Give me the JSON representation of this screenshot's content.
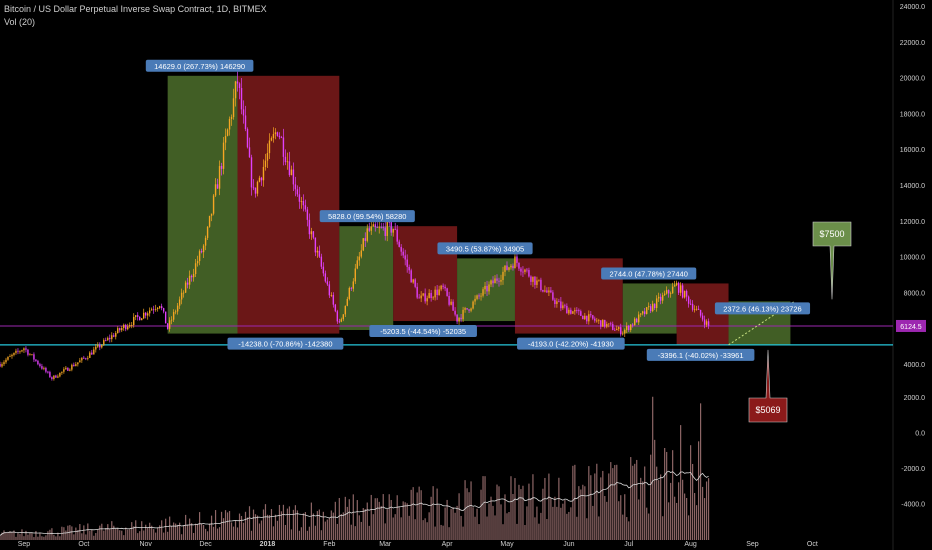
{
  "header": {
    "title": "Bitcoin / US Dollar Perpetual Inverse Swap Contract, 1D, BITMEX",
    "volume_label": "Vol (20)"
  },
  "colors": {
    "background": "#000000",
    "up_candle": "#f5a623",
    "down_candle": "#e040fb",
    "green_box": "#4a6b2a",
    "red_box": "#7a1a1a",
    "support_line": "#26c6da",
    "price_line": "#9c27b0",
    "label_blue": "#4a7bb7",
    "callout_green": "#6b8f4a",
    "callout_red": "#8b1a1a",
    "volume_bar": "#b08080"
  },
  "chart_data": {
    "type": "candlestick",
    "x_ticks": [
      "Sep",
      "Oct",
      "Nov",
      "Dec",
      "2018",
      "Feb",
      "Mar",
      "Apr",
      "May",
      "Jun",
      "Jul",
      "Aug",
      "Sep",
      "Oct"
    ],
    "y_ticks": [
      "24000.0",
      "22000.0",
      "20000.0",
      "18000.0",
      "16000.0",
      "14000.0",
      "12000.0",
      "10000.0",
      "8000.0",
      "6000.0",
      "4000.0",
      "2000.0",
      "0.0",
      "-2000.0",
      "-4000.0"
    ],
    "price_ylim": [
      2500,
      24000
    ],
    "current_price": "6124.5",
    "support_level": 5069,
    "price_path": [
      [
        "2017-08-20",
        4000
      ],
      [
        "2017-09-01",
        4900
      ],
      [
        "2017-09-15",
        3200
      ],
      [
        "2017-10-01",
        4300
      ],
      [
        "2017-10-20",
        6000
      ],
      [
        "2017-11-08",
        7400
      ],
      [
        "2017-11-12",
        6000
      ],
      [
        "2017-12-01",
        10800
      ],
      [
        "2017-12-17",
        19800
      ],
      [
        "2017-12-25",
        13500
      ],
      [
        "2018-01-06",
        17200
      ],
      [
        "2018-02-06",
        6200
      ],
      [
        "2018-02-20",
        11400
      ],
      [
        "2018-03-05",
        11600
      ],
      [
        "2018-03-18",
        7600
      ],
      [
        "2018-03-30",
        8200
      ],
      [
        "2018-04-06",
        6500
      ],
      [
        "2018-05-05",
        9800
      ],
      [
        "2018-05-28",
        7200
      ],
      [
        "2018-06-28",
        5800
      ],
      [
        "2018-07-25",
        8400
      ],
      [
        "2018-08-10",
        6124.5
      ]
    ],
    "measurement_boxes": [
      {
        "start": "2017-11-12",
        "end": "2017-12-17",
        "low": 5700,
        "high": 20100,
        "direction": "up",
        "label": "14629.0 (267.73%) 146290"
      },
      {
        "start": "2017-12-17",
        "end": "2018-02-06",
        "low": 5700,
        "high": 20100,
        "direction": "down",
        "label": "-14238.0 (-70.86%) -142380"
      },
      {
        "start": "2018-02-06",
        "end": "2018-03-05",
        "low": 5900,
        "high": 11700,
        "direction": "up",
        "label": "5828.0 (99.54%) 58280"
      },
      {
        "start": "2018-03-05",
        "end": "2018-04-06",
        "low": 6400,
        "high": 11700,
        "direction": "down",
        "label": "-5203.5 (-44.54%) -52035"
      },
      {
        "start": "2018-04-06",
        "end": "2018-05-05",
        "low": 6400,
        "high": 9900,
        "direction": "up",
        "label": "3490.5 (53.87%) 34905"
      },
      {
        "start": "2018-05-05",
        "end": "2018-06-28",
        "low": 5700,
        "high": 9900,
        "direction": "down",
        "label": "-4193.0 (-42.20%) -41930"
      },
      {
        "start": "2018-06-28",
        "end": "2018-07-25",
        "low": 5700,
        "high": 8500,
        "direction": "up",
        "label": "2744.0 (47.78%) 27440"
      },
      {
        "start": "2018-07-25",
        "end": "2018-08-20",
        "low": 5069,
        "high": 8500,
        "direction": "down",
        "label": "-3396.1 (-40.02%) -33961"
      },
      {
        "start": "2018-08-20",
        "end": "2018-09-20",
        "low": 5069,
        "high": 7500,
        "direction": "up",
        "label": "2372.6 (46.13%) 23726"
      }
    ],
    "targets": [
      {
        "label": "$7500",
        "value": 7500,
        "direction": "up"
      },
      {
        "label": "$5069",
        "value": 5069,
        "direction": "down"
      }
    ]
  }
}
